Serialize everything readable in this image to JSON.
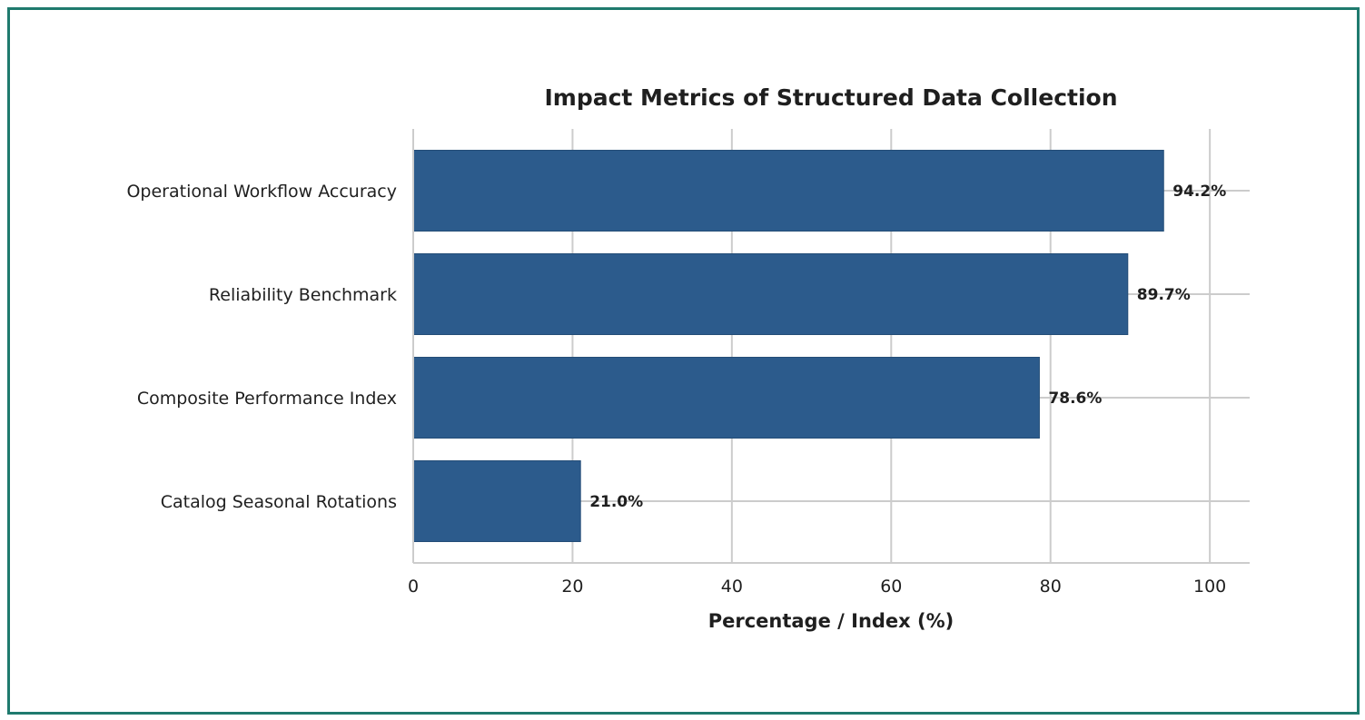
{
  "chart_data": {
    "type": "bar",
    "orientation": "horizontal",
    "title": "Impact Metrics of Structured Data Collection",
    "xlabel": "Percentage / Index (%)",
    "ylabel": "",
    "categories": [
      "Operational Workflow Accuracy",
      "Reliability Benchmark",
      "Composite Performance Index",
      "Catalog Seasonal Rotations"
    ],
    "values": [
      94.2,
      89.7,
      78.6,
      21.0
    ],
    "value_labels": [
      "94.2%",
      "89.7%",
      "78.6%",
      "21.0%"
    ],
    "xlim": [
      0,
      105
    ],
    "xticks": [
      0,
      20,
      40,
      60,
      80,
      100
    ],
    "xtick_labels": [
      "0",
      "20",
      "40",
      "60",
      "80",
      "100"
    ],
    "grid": true,
    "bar_color": "#2c5b8c",
    "frame_color": "#1f7a6e"
  }
}
